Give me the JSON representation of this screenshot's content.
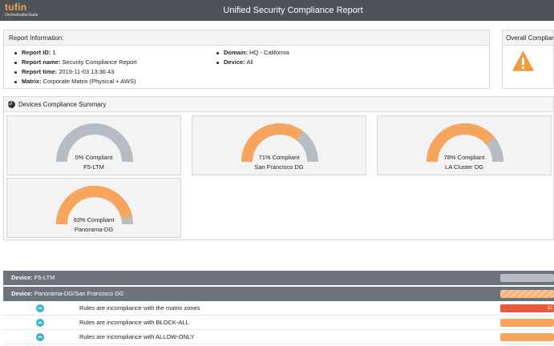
{
  "app": {
    "logo_main": "tufin",
    "logo_sub": "OrchestrationSuite",
    "title": "Unified Security Compliance Report"
  },
  "report_info": {
    "heading": "Report Information:",
    "left": [
      {
        "label": "Report ID:",
        "value": " 1"
      },
      {
        "label": "Report name:",
        "value": " Security Compliance Report"
      },
      {
        "label": "Report time:",
        "value": " 2019-11-03 13:36:43"
      },
      {
        "label": "Matrix:",
        "value": " Corporate Matrix (Physical + AWS)"
      }
    ],
    "right": [
      {
        "label": "Domain:",
        "value": " HQ - California"
      },
      {
        "label": "Device:",
        "value": " All"
      }
    ]
  },
  "overall": {
    "heading": "Overall Compliance",
    "icon": "warning-triangle-icon",
    "icon_color": "#f39c3d"
  },
  "summary": {
    "heading": "Devices Compliance Summary",
    "icon": "pie-chart-icon",
    "colors": {
      "compliant": "#f7a45c",
      "noncompliant": "#b5bcc3"
    },
    "devices": [
      {
        "pct_label": "0% Compliant",
        "name": "F5-LTM",
        "fraction": 0.0
      },
      {
        "pct_label": "71% Compliant",
        "name": "San Francisco DG",
        "fraction": 0.71
      },
      {
        "pct_label": "78% Compliant",
        "name": "LA Cluster DG",
        "fraction": 0.78
      },
      {
        "pct_label": "93% Compliant",
        "name": "Panorama-DG",
        "fraction": 0.93
      }
    ]
  },
  "device_rows": [
    {
      "label": "Device:",
      "name": " F5-LTM"
    },
    {
      "label": "Device:",
      "name": " Panorama-DG/San Francisco DG"
    }
  ],
  "rules": [
    {
      "text": "Rules are incompliance with the matrix zones",
      "bar_value": "12",
      "color": "#e9573f"
    },
    {
      "text": "Rules are incompliance with BLOCK-ALL",
      "color": "#f7a45c"
    },
    {
      "text": "Rules are incompliance with ALLOW-ONLY",
      "color": "#f7a45c"
    }
  ]
}
